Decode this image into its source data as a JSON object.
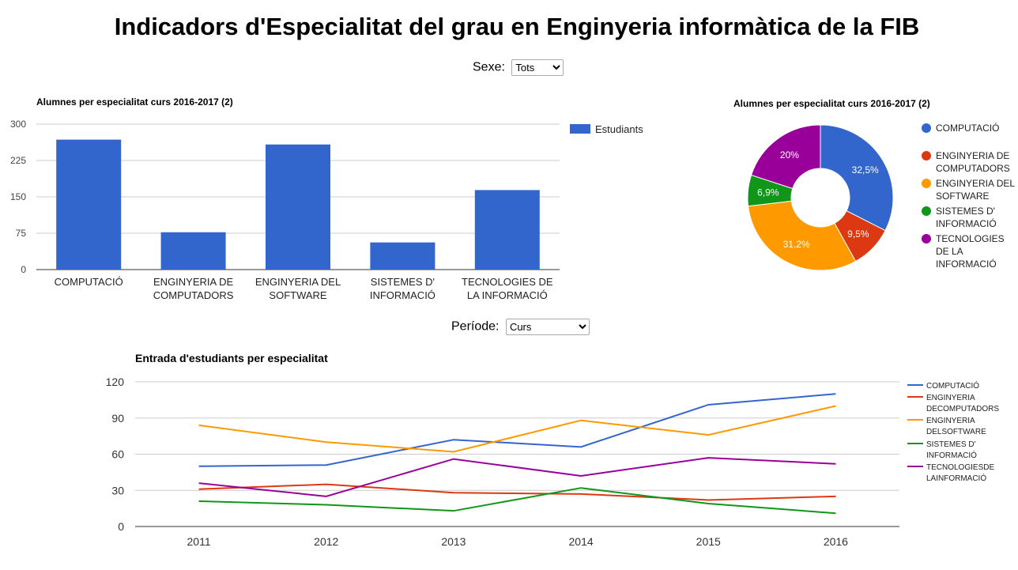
{
  "page": {
    "title": "Indicadors d'Especialitat del grau en Enginyeria informàtica de la FIB"
  },
  "filters": {
    "sexe_label": "Sexe:",
    "sexe_value": "Tots",
    "periode_label": "Període:",
    "periode_value": "Curs"
  },
  "chart_data": [
    {
      "type": "bar",
      "title": "Alumnes per especialitat curs 2016-2017 (2)",
      "categories": [
        [
          "COMPUTACIÓ"
        ],
        [
          "ENGINYERIA DE",
          "COMPUTADORS"
        ],
        [
          "ENGINYERIA DEL",
          "SOFTWARE"
        ],
        [
          "SISTEMES D'",
          "INFORMACIÓ"
        ],
        [
          "TECNOLOGIES DE",
          "LA INFORMACIÓ"
        ]
      ],
      "series": [
        {
          "name": "Estudiants",
          "values": [
            268,
            77,
            258,
            56,
            164
          ]
        }
      ],
      "ylim": [
        0,
        300
      ],
      "yticks": [
        0,
        75,
        150,
        225,
        300
      ],
      "grid": true,
      "legend": "right",
      "colors": [
        "#3366cc"
      ]
    },
    {
      "type": "pie",
      "title": "Alumnes per especialitat curs 2016-2017 (2)",
      "donut": true,
      "slices": [
        {
          "label": [
            "COMPUTACIÓ"
          ],
          "value": 32.5,
          "text": "32,5%",
          "color": "#3366cc"
        },
        {
          "label": [
            "ENGINYERIA DE",
            "COMPUTADORS"
          ],
          "value": 9.5,
          "text": "9,5%",
          "color": "#dc3912"
        },
        {
          "label": [
            "ENGINYERIA DEL",
            "SOFTWARE"
          ],
          "value": 31.2,
          "text": "31,2%",
          "color": "#ff9900"
        },
        {
          "label": [
            "SISTEMES D'",
            "INFORMACIÓ"
          ],
          "value": 6.9,
          "text": "6,9%",
          "color": "#109618"
        },
        {
          "label": [
            "TECNOLOGIES",
            "DE LA",
            "INFORMACIÓ"
          ],
          "value": 20,
          "text": "20%",
          "color": "#990099"
        }
      ],
      "legend": "right"
    },
    {
      "type": "line",
      "title": "Entrada d'estudiants per especialitat",
      "x": [
        "2011",
        "2012",
        "2013",
        "2014",
        "2015",
        "2016"
      ],
      "ylim": [
        0,
        120
      ],
      "yticks": [
        0,
        30,
        60,
        90,
        120
      ],
      "grid": true,
      "legend": "right",
      "series": [
        {
          "name": [
            "COMPUTACIÓ"
          ],
          "color": "#3366cc",
          "values": [
            50,
            51,
            72,
            66,
            101,
            110
          ]
        },
        {
          "name": [
            "ENGINYERIA",
            "DECOMPUTADORS"
          ],
          "color": "#dc3912",
          "values": [
            31,
            35,
            28,
            27,
            22,
            25
          ]
        },
        {
          "name": [
            "ENGINYERIA",
            "DELSOFTWARE"
          ],
          "color": "#ff9900",
          "values": [
            84,
            70,
            62,
            88,
            76,
            100
          ]
        },
        {
          "name": [
            "SISTEMES D'",
            "INFORMACIÓ"
          ],
          "color": "#109618",
          "values": [
            21,
            18,
            13,
            32,
            19,
            11
          ]
        },
        {
          "name": [
            "TECNOLOGIESDE",
            "LAINFORMACIÓ"
          ],
          "color": "#990099",
          "values": [
            36,
            25,
            56,
            42,
            57,
            52
          ]
        }
      ]
    }
  ]
}
